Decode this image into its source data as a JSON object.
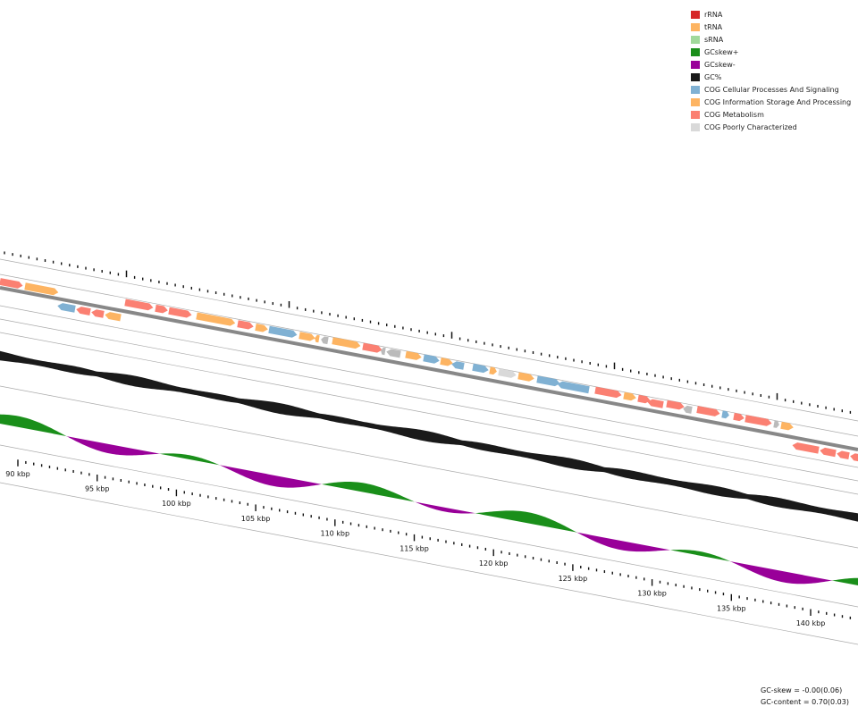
{
  "legend": {
    "items": [
      {
        "label": "rRNA",
        "color": "#d62728"
      },
      {
        "label": "tRNA",
        "color": "#fdb462"
      },
      {
        "label": "sRNA",
        "color": "#a1d99b"
      },
      {
        "label": "GCskew+",
        "color": "#1a8f1a"
      },
      {
        "label": "GCskew-",
        "color": "#990099"
      },
      {
        "label": "GC%",
        "color": "#1a1a1a"
      },
      {
        "label": "COG Cellular Processes And Signaling",
        "color": "#80b1d3"
      },
      {
        "label": "COG Information Storage And Processing",
        "color": "#fdb462"
      },
      {
        "label": "COG Metabolism",
        "color": "#fb8072"
      },
      {
        "label": "COG Poorly Characterized",
        "color": "#d9d9d9"
      }
    ]
  },
  "axis": {
    "tick_labels": [
      "90 kbp",
      "95 kbp",
      "100 kbp",
      "105 kbp",
      "110 kbp",
      "115 kbp",
      "120 kbp",
      "125 kbp",
      "130 kbp",
      "135 kbp",
      "140 kbp"
    ]
  },
  "stats": {
    "gc_skew": "GC-skew = -0.00(0.06)",
    "gc_content": "GC-content = 0.70(0.03)"
  }
}
